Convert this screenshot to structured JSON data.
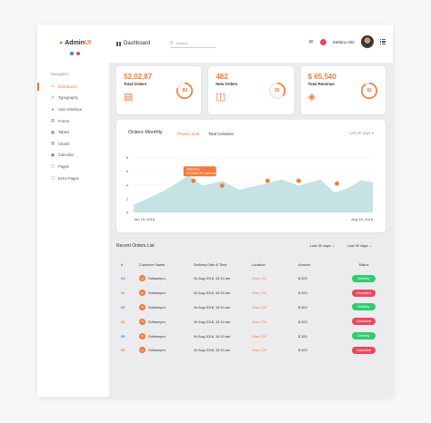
{
  "app": {
    "name_prefix": "Admin",
    "name_suffix": "UI",
    "dot_colors": [
      "#3b82f6",
      "#e84a5f"
    ]
  },
  "sidebar": {
    "heading": "Navigation",
    "items": [
      {
        "label": "Dashboard",
        "icon": "monitor-icon",
        "glyph": "▭",
        "active": true
      },
      {
        "label": "Typography",
        "icon": "typography-icon",
        "glyph": "T",
        "active": false
      },
      {
        "label": "User Interface",
        "icon": "user-icon",
        "glyph": "●",
        "active": false
      },
      {
        "label": "Forms",
        "icon": "forms-icon",
        "glyph": "▤",
        "active": false
      },
      {
        "label": "Tables",
        "icon": "table-icon",
        "glyph": "▦",
        "active": false
      },
      {
        "label": "Charts",
        "icon": "chart-icon",
        "glyph": "▥",
        "active": false
      },
      {
        "label": "Calendar",
        "icon": "calendar-icon",
        "glyph": "▣",
        "active": false
      },
      {
        "label": "Pages",
        "icon": "pages-icon",
        "glyph": "▢",
        "active": false
      },
      {
        "label": "Extra Pages",
        "icon": "extra-pages-icon",
        "glyph": "▢",
        "active": false
      }
    ]
  },
  "header": {
    "title": "Dashboard",
    "search_placeholder": "Search...",
    "user_name": "Stefano Aitti"
  },
  "stats": [
    {
      "value": "52,02,87",
      "label": "Total Orders",
      "percent": 80,
      "percent_label": "80",
      "icon": "receipt-icon",
      "glyph": "▤"
    },
    {
      "value": "482",
      "label": "New Orders",
      "percent": 36,
      "percent_label": "36",
      "icon": "bag-icon",
      "glyph": "◫"
    },
    {
      "value": "$ 65,540",
      "label": "Total Revenue",
      "percent": 92,
      "percent_label": "92",
      "icon": "money-icon",
      "glyph": "◈"
    }
  ],
  "orders_chart": {
    "title": "Orders Monthly",
    "legend": [
      "Product Sold",
      "Total Customer"
    ],
    "period": "Last 30 days",
    "tooltip": {
      "date": "16/5/2018",
      "text": "10.24AM 40 Customer"
    },
    "x_start": "Jan 15, 2018",
    "x_end": "Aug 16, 2018"
  },
  "chart_data": {
    "type": "area",
    "y_ticks": [
      0,
      2,
      4,
      6,
      8
    ],
    "ylim": [
      0,
      9
    ],
    "series": [
      {
        "name": "Total Customer",
        "color": "#c5e3e4",
        "points": [
          [
            0,
            1.1
          ],
          [
            0.13,
            3.2
          ],
          [
            0.23,
            5.4
          ],
          [
            0.29,
            3.9
          ],
          [
            0.37,
            4.6
          ],
          [
            0.44,
            3.3
          ],
          [
            0.54,
            4.1
          ],
          [
            0.62,
            4.8
          ],
          [
            0.69,
            3.9
          ],
          [
            0.78,
            4.8
          ],
          [
            0.84,
            2.9
          ],
          [
            0.9,
            3.6
          ],
          [
            0.95,
            4.7
          ],
          [
            1.0,
            4.4
          ]
        ]
      },
      {
        "name": "Product Sold",
        "color": "#f47a3c",
        "points": [
          [
            0.25,
            4.6
          ],
          [
            0.37,
            3.9
          ],
          [
            0.56,
            4.6
          ],
          [
            0.69,
            4.6
          ],
          [
            0.85,
            4.2
          ]
        ]
      }
    ]
  },
  "recent_orders": {
    "title": "Recent Orders List",
    "filter1": "Last 30 days ⌄",
    "filter2": "Last 30 days ⌄",
    "columns": [
      "#",
      "Customer Name",
      "Delivery Date & Time",
      "Location",
      "Amount",
      "Status"
    ],
    "rows": [
      {
        "id": "01",
        "initials": "SF",
        "name": "Sofianepro",
        "date": "04 Aug 2018, 10:10 am",
        "location": "Oran, DZ",
        "amount": "$ 320",
        "status": "Delivery",
        "status_color": "#2ecc71"
      },
      {
        "id": "02",
        "initials": "SF",
        "name": "Sofianepro",
        "date": "04 Aug 2018, 10:10 am",
        "location": "Oran, DZ",
        "amount": "$ 320",
        "status": "Cancelled",
        "status_color": "#e84a5f"
      },
      {
        "id": "03",
        "initials": "SF",
        "name": "Sofianepro",
        "date": "04 Aug 2018, 10:10 am",
        "location": "Oran, DZ",
        "amount": "$ 320",
        "status": "Delivery",
        "status_color": "#2ecc71"
      },
      {
        "id": "04",
        "initials": "SF",
        "name": "Sofianepro",
        "date": "04 Aug 2018, 10:10 am",
        "location": "Oran, DZ",
        "amount": "$ 320",
        "status": "Cancelled",
        "status_color": "#e84a5f"
      },
      {
        "id": "05",
        "initials": "SF",
        "name": "Sofianepro",
        "date": "04 Aug 2018, 10:10 am",
        "location": "Oran, DZ",
        "amount": "$ 320",
        "status": "Delivery",
        "status_color": "#2ecc71"
      },
      {
        "id": "06",
        "initials": "SF",
        "name": "Sofianepro",
        "date": "04 Aug 2018, 10:10 am",
        "location": "Oran, DZ",
        "amount": "$ 320",
        "status": "Cancelled",
        "status_color": "#e84a5f"
      }
    ]
  }
}
